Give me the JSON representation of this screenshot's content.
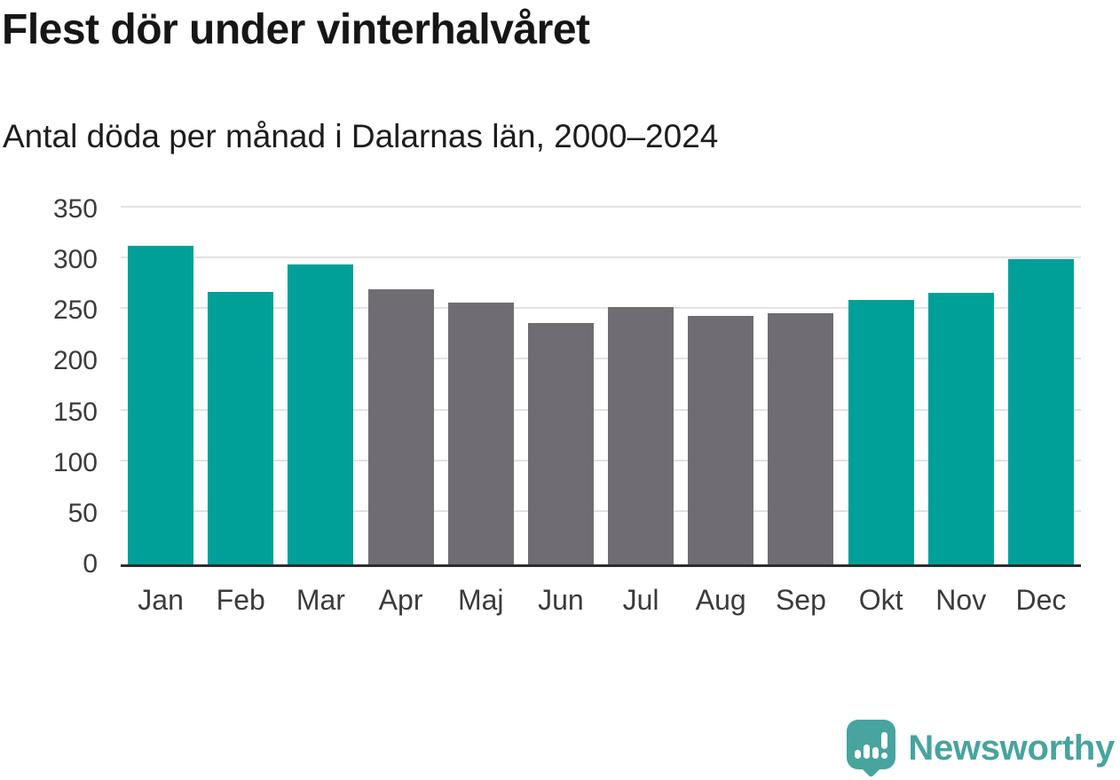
{
  "title": "Flest dör under vinterhalvåret",
  "subtitle": "Antal döda per månad i Dalarnas län, 2000–2024",
  "logo": {
    "text": "Newsworthy",
    "icon": "speech-bubble-with-bar-chart-and-exclamation"
  },
  "colors": {
    "winter_bar": "#00a099",
    "summer_bar": "#6f6d73",
    "axis_line": "#2d2d2d",
    "gridline": "#e2e2e2",
    "tick_text": "#3b3b3b",
    "title_text": "#161616",
    "subtitle_text": "#1d1d1d",
    "logo_teal": "#47a49e"
  },
  "chart_data": {
    "type": "bar",
    "title": "Flest dör under vinterhalvåret",
    "subtitle": "Antal döda per månad i Dalarnas län, 2000–2024",
    "categories": [
      "Jan",
      "Feb",
      "Mar",
      "Apr",
      "Maj",
      "Jun",
      "Jul",
      "Aug",
      "Sep",
      "Okt",
      "Nov",
      "Dec"
    ],
    "values": [
      314,
      269,
      296,
      271,
      258,
      238,
      254,
      245,
      248,
      261,
      268,
      301
    ],
    "bar_seasons": [
      "winter",
      "winter",
      "winter",
      "summer",
      "summer",
      "summer",
      "summer",
      "summer",
      "summer",
      "winter",
      "winter",
      "winter"
    ],
    "palette": {
      "winter": "#00a099",
      "summer": "#6f6d73"
    },
    "xlabel": "",
    "ylabel": "",
    "ylim": [
      0,
      350
    ],
    "yticks": [
      0,
      50,
      100,
      150,
      200,
      250,
      300,
      350
    ],
    "grid": true,
    "legend": "none"
  }
}
